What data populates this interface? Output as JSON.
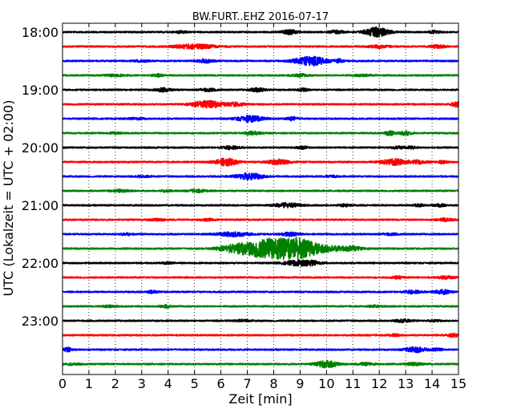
{
  "chart_data": {
    "type": "line",
    "title": "BW.FURT..EHZ 2016-07-17",
    "xlabel": "Zeit  [min]",
    "ylabel": "UTC (Lokalzeit = UTC + 02:00)",
    "xlim": [
      0,
      15
    ],
    "x_ticks": [
      "0",
      "1",
      "2",
      "3",
      "4",
      "5",
      "6",
      "7",
      "8",
      "9",
      "10",
      "11",
      "12",
      "13",
      "14",
      "15"
    ],
    "grid": "vertical dotted",
    "row_interval_min": 15,
    "traces": [
      {
        "start": "18:00",
        "label": "18:00",
        "color": "#000000",
        "events": [
          {
            "t": 4.5,
            "amp": 0.1,
            "w": 0.25
          },
          {
            "t": 8.6,
            "amp": 0.25,
            "w": 0.3
          },
          {
            "t": 10.4,
            "amp": 0.2,
            "w": 0.25
          },
          {
            "t": 11.9,
            "amp": 0.55,
            "w": 0.45
          },
          {
            "t": 14.1,
            "amp": 0.15,
            "w": 0.2
          }
        ]
      },
      {
        "start": "18:15",
        "label": "",
        "color": "#ff0000",
        "events": [
          {
            "t": 5.0,
            "amp": 0.25,
            "w": 0.8
          },
          {
            "t": 12.0,
            "amp": 0.15,
            "w": 0.4
          },
          {
            "t": 14.2,
            "amp": 0.15,
            "w": 0.3
          }
        ]
      },
      {
        "start": "18:30",
        "label": "",
        "color": "#0000ff",
        "events": [
          {
            "t": 3.0,
            "amp": 0.1,
            "w": 0.3
          },
          {
            "t": 5.4,
            "amp": 0.2,
            "w": 0.3
          },
          {
            "t": 9.4,
            "amp": 0.55,
            "w": 0.6
          },
          {
            "t": 10.5,
            "amp": 0.2,
            "w": 0.15
          }
        ]
      },
      {
        "start": "18:45",
        "label": "",
        "color": "#008000",
        "events": [
          {
            "t": 2.0,
            "amp": 0.1,
            "w": 0.4
          },
          {
            "t": 3.6,
            "amp": 0.15,
            "w": 0.2
          },
          {
            "t": 9.0,
            "amp": 0.15,
            "w": 0.3
          },
          {
            "t": 11.4,
            "amp": 0.1,
            "w": 0.3
          }
        ]
      },
      {
        "start": "19:00",
        "label": "19:00",
        "color": "#000000",
        "events": [
          {
            "t": 3.8,
            "amp": 0.2,
            "w": 0.3
          },
          {
            "t": 5.5,
            "amp": 0.15,
            "w": 0.3
          },
          {
            "t": 7.4,
            "amp": 0.2,
            "w": 0.3
          },
          {
            "t": 9.1,
            "amp": 0.15,
            "w": 0.2
          }
        ]
      },
      {
        "start": "19:15",
        "label": "",
        "color": "#ff0000",
        "events": [
          {
            "t": 5.5,
            "amp": 0.4,
            "w": 0.6
          },
          {
            "t": 6.6,
            "amp": 0.2,
            "w": 0.3
          },
          {
            "t": 14.9,
            "amp": 0.35,
            "w": 0.15
          }
        ]
      },
      {
        "start": "19:30",
        "label": "",
        "color": "#0000ff",
        "events": [
          {
            "t": 2.8,
            "amp": 0.1,
            "w": 0.3
          },
          {
            "t": 7.1,
            "amp": 0.35,
            "w": 0.5
          },
          {
            "t": 8.7,
            "amp": 0.2,
            "w": 0.2
          }
        ]
      },
      {
        "start": "19:45",
        "label": "",
        "color": "#008000",
        "events": [
          {
            "t": 2.0,
            "amp": 0.1,
            "w": 0.2
          },
          {
            "t": 7.2,
            "amp": 0.2,
            "w": 0.3
          },
          {
            "t": 12.4,
            "amp": 0.25,
            "w": 0.2
          },
          {
            "t": 13.0,
            "amp": 0.25,
            "w": 0.2
          }
        ]
      },
      {
        "start": "20:00",
        "label": "20:00",
        "color": "#000000",
        "events": [
          {
            "t": 6.4,
            "amp": 0.2,
            "w": 0.3
          },
          {
            "t": 9.1,
            "amp": 0.15,
            "w": 0.2
          },
          {
            "t": 12.7,
            "amp": 0.15,
            "w": 0.2
          },
          {
            "t": 13.2,
            "amp": 0.15,
            "w": 0.2
          }
        ]
      },
      {
        "start": "20:15",
        "label": "",
        "color": "#ff0000",
        "events": [
          {
            "t": 6.2,
            "amp": 0.45,
            "w": 0.4
          },
          {
            "t": 8.2,
            "amp": 0.3,
            "w": 0.4
          },
          {
            "t": 12.6,
            "amp": 0.35,
            "w": 0.5
          },
          {
            "t": 13.5,
            "amp": 0.2,
            "w": 0.3
          },
          {
            "t": 14.4,
            "amp": 0.15,
            "w": 0.2
          }
        ]
      },
      {
        "start": "20:30",
        "label": "",
        "color": "#0000ff",
        "events": [
          {
            "t": 7.1,
            "amp": 0.4,
            "w": 0.5
          },
          {
            "t": 3.0,
            "amp": 0.1,
            "w": 0.3
          },
          {
            "t": 10.2,
            "amp": 0.1,
            "w": 0.2
          }
        ]
      },
      {
        "start": "20:45",
        "label": "",
        "color": "#008000",
        "events": [
          {
            "t": 2.2,
            "amp": 0.15,
            "w": 0.3
          },
          {
            "t": 5.1,
            "amp": 0.15,
            "w": 0.3
          },
          {
            "t": 3.9,
            "amp": 0.1,
            "w": 0.2
          }
        ]
      },
      {
        "start": "21:00",
        "label": "21:00",
        "color": "#000000",
        "events": [
          {
            "t": 8.5,
            "amp": 0.25,
            "w": 0.5
          },
          {
            "t": 10.7,
            "amp": 0.15,
            "w": 0.2
          },
          {
            "t": 13.5,
            "amp": 0.15,
            "w": 0.2
          },
          {
            "t": 14.3,
            "amp": 0.15,
            "w": 0.2
          }
        ]
      },
      {
        "start": "21:15",
        "label": "",
        "color": "#ff0000",
        "events": [
          {
            "t": 3.6,
            "amp": 0.1,
            "w": 0.3
          },
          {
            "t": 5.5,
            "amp": 0.1,
            "w": 0.3
          },
          {
            "t": 14.5,
            "amp": 0.15,
            "w": 0.3
          }
        ]
      },
      {
        "start": "21:30",
        "label": "",
        "color": "#0000ff",
        "events": [
          {
            "t": 6.5,
            "amp": 0.25,
            "w": 0.6
          },
          {
            "t": 2.4,
            "amp": 0.15,
            "w": 0.2
          },
          {
            "t": 8.6,
            "amp": 0.2,
            "w": 0.3
          },
          {
            "t": 12.4,
            "amp": 0.1,
            "w": 0.3
          }
        ]
      },
      {
        "start": "21:45",
        "label": "",
        "color": "#008000",
        "events": [
          {
            "t": 7.9,
            "amp": 1.2,
            "w": 1.1
          },
          {
            "t": 9.0,
            "amp": 0.7,
            "w": 0.6
          },
          {
            "t": 10.0,
            "amp": 0.3,
            "w": 1.0
          },
          {
            "t": 6.5,
            "amp": 0.3,
            "w": 0.6
          },
          {
            "t": 11.0,
            "amp": 0.15,
            "w": 0.4
          }
        ]
      },
      {
        "start": "22:00",
        "label": "22:00",
        "color": "#000000",
        "events": [
          {
            "t": 8.9,
            "amp": 0.3,
            "w": 0.5
          },
          {
            "t": 9.5,
            "amp": 0.2,
            "w": 0.3
          },
          {
            "t": 4.0,
            "amp": 0.1,
            "w": 0.2
          }
        ]
      },
      {
        "start": "22:15",
        "label": "",
        "color": "#ff0000",
        "events": [
          {
            "t": 12.7,
            "amp": 0.15,
            "w": 0.2
          },
          {
            "t": 14.5,
            "amp": 0.15,
            "w": 0.3
          }
        ]
      },
      {
        "start": "22:30",
        "label": "",
        "color": "#0000ff",
        "events": [
          {
            "t": 3.4,
            "amp": 0.15,
            "w": 0.2
          },
          {
            "t": 13.3,
            "amp": 0.2,
            "w": 0.3
          },
          {
            "t": 14.4,
            "amp": 0.25,
            "w": 0.3
          }
        ]
      },
      {
        "start": "22:45",
        "label": "",
        "color": "#008000",
        "events": [
          {
            "t": 1.8,
            "amp": 0.1,
            "w": 0.3
          },
          {
            "t": 3.9,
            "amp": 0.15,
            "w": 0.2
          },
          {
            "t": 11.8,
            "amp": 0.1,
            "w": 0.2
          }
        ]
      },
      {
        "start": "23:00",
        "label": "23:00",
        "color": "#000000",
        "events": [
          {
            "t": 6.8,
            "amp": 0.1,
            "w": 0.3
          },
          {
            "t": 12.9,
            "amp": 0.15,
            "w": 0.3
          },
          {
            "t": 14.1,
            "amp": 0.1,
            "w": 0.2
          }
        ]
      },
      {
        "start": "23:15",
        "label": "",
        "color": "#ff0000",
        "events": [
          {
            "t": 12.6,
            "amp": 0.1,
            "w": 0.2
          },
          {
            "t": 14.8,
            "amp": 0.2,
            "w": 0.2
          }
        ]
      },
      {
        "start": "23:30",
        "label": "",
        "color": "#0000ff",
        "events": [
          {
            "t": 0.2,
            "amp": 0.2,
            "w": 0.2
          },
          {
            "t": 13.4,
            "amp": 0.3,
            "w": 0.4
          },
          {
            "t": 14.2,
            "amp": 0.15,
            "w": 0.2
          }
        ]
      },
      {
        "start": "23:45",
        "label": "",
        "color": "#008000",
        "events": [
          {
            "t": 10.0,
            "amp": 0.4,
            "w": 0.4
          },
          {
            "t": 0.4,
            "amp": 0.1,
            "w": 0.3
          },
          {
            "t": 11.5,
            "amp": 0.15,
            "w": 0.3
          },
          {
            "t": 13.3,
            "amp": 0.15,
            "w": 0.3
          }
        ]
      }
    ]
  }
}
